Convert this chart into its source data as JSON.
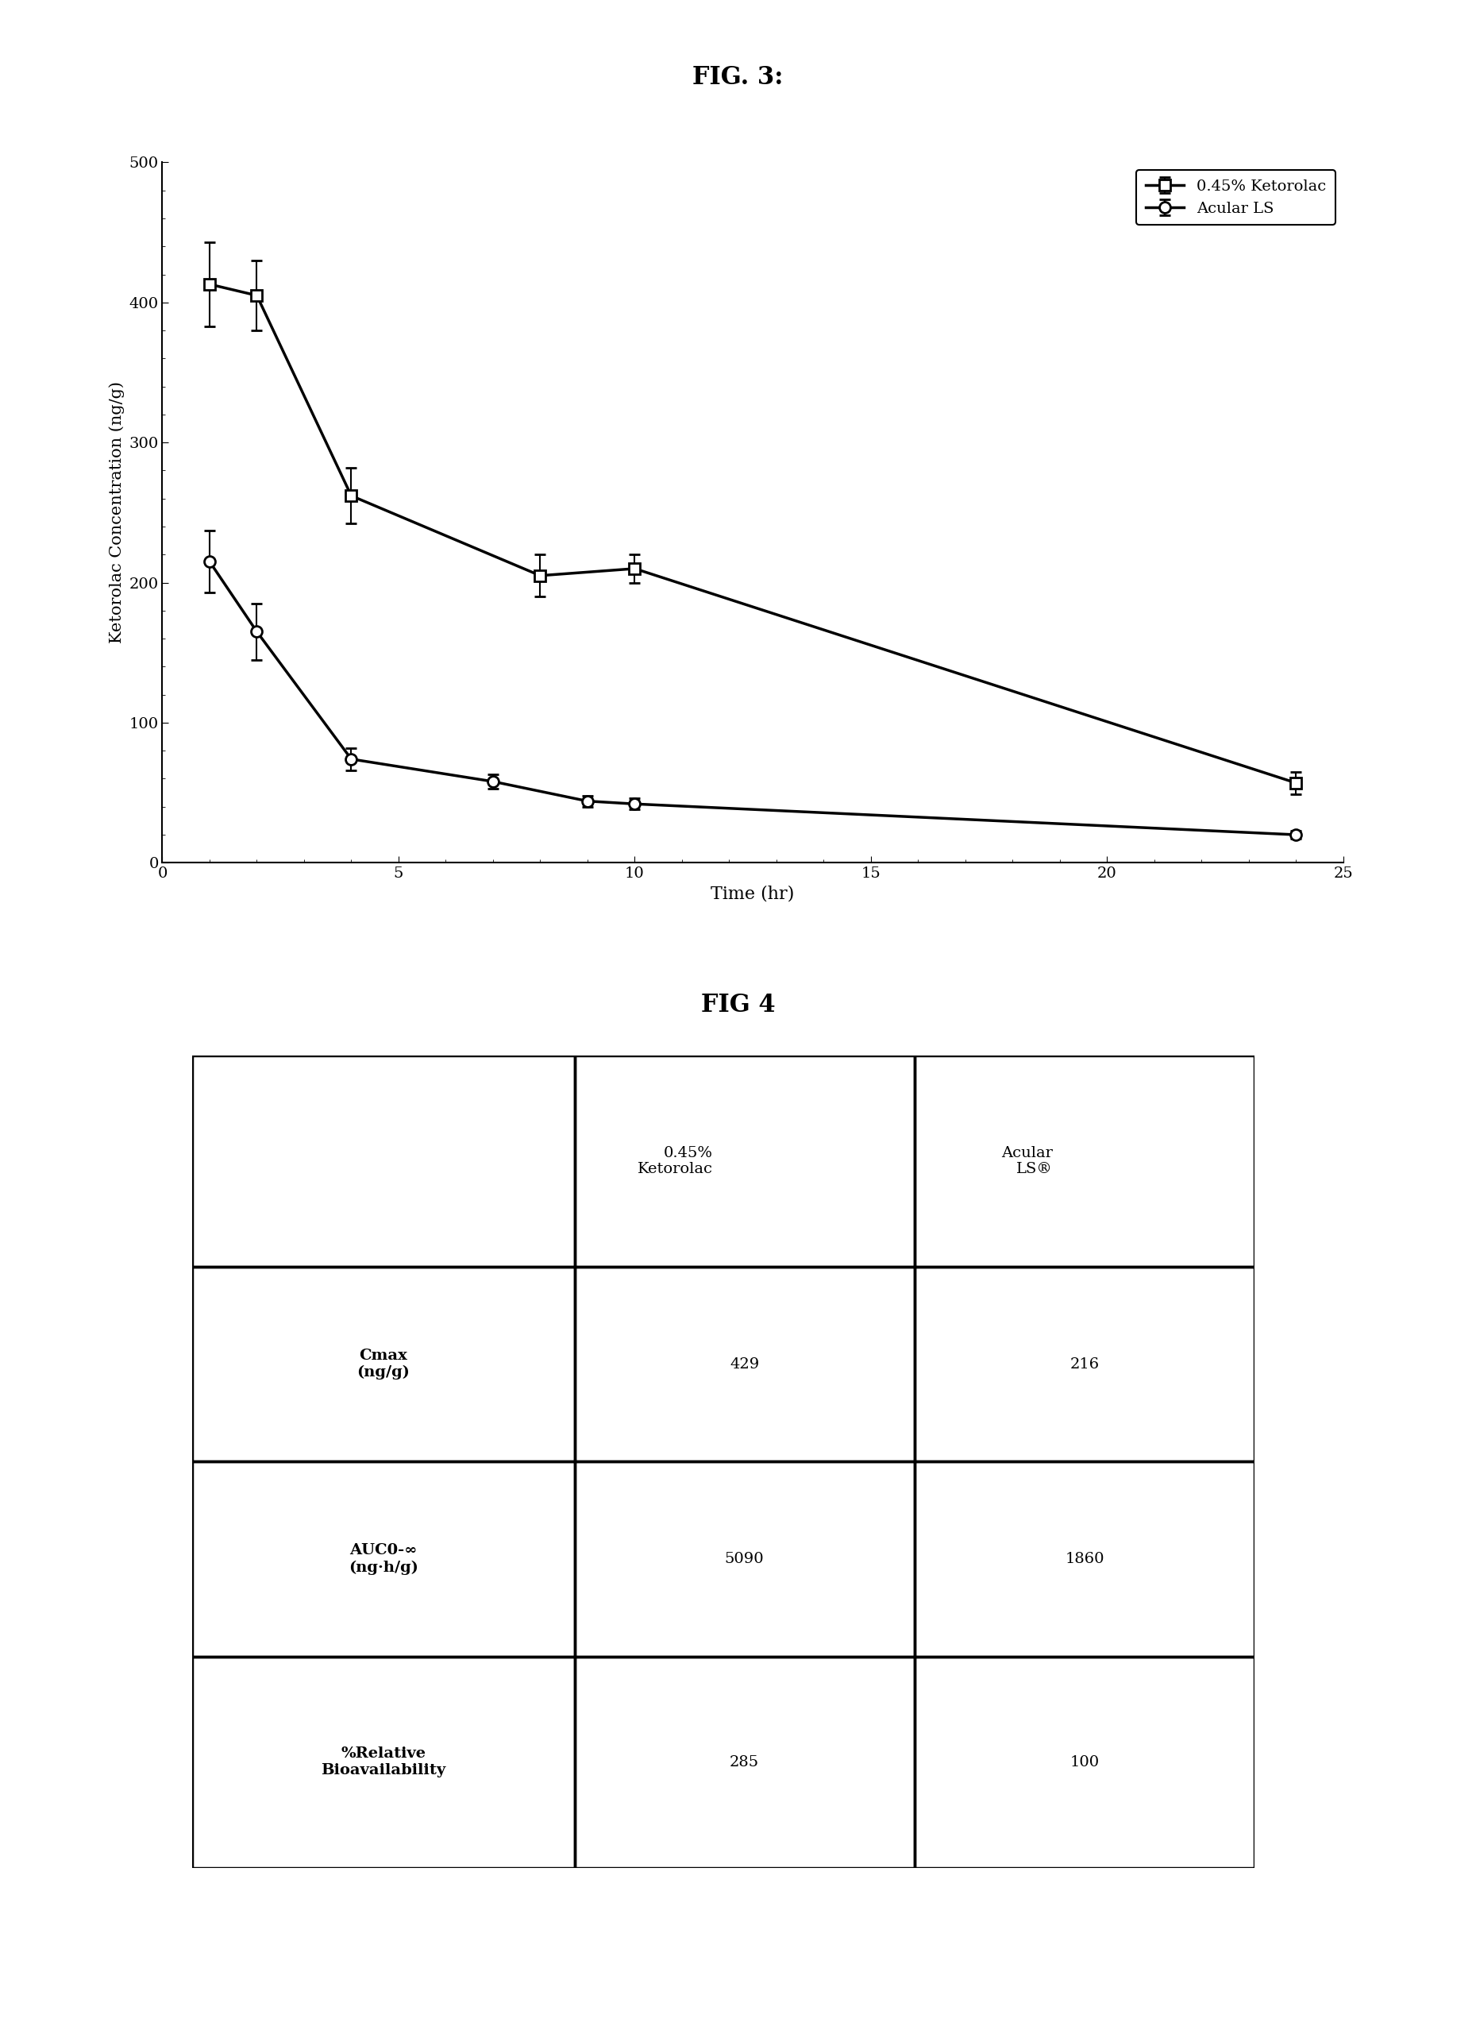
{
  "fig3_title": "FIG. 3:",
  "fig4_title": "FIG 4",
  "line1_label": "0.45% Ketorolac",
  "line2_label": "Acular LS",
  "line1_x": [
    1,
    2,
    4,
    8,
    10,
    24
  ],
  "line1_y": [
    413,
    405,
    262,
    205,
    210,
    57
  ],
  "line1_yerr": [
    30,
    25,
    20,
    15,
    10,
    8
  ],
  "line2_x": [
    1,
    2,
    4,
    7,
    9,
    10,
    24
  ],
  "line2_y": [
    215,
    165,
    74,
    58,
    44,
    42,
    20
  ],
  "line2_yerr": [
    22,
    20,
    8,
    5,
    4,
    4,
    3
  ],
  "xlabel": "Time (hr)",
  "ylabel": "Ketorolac Concentration (ng/g)",
  "xlim": [
    0,
    25
  ],
  "ylim": [
    0,
    500
  ],
  "xticks": [
    0,
    5,
    10,
    15,
    20,
    25
  ],
  "yticks": [
    0,
    100,
    200,
    300,
    400,
    500
  ],
  "bg_color": "#ffffff",
  "fig_width": 18.59,
  "fig_height": 25.56
}
